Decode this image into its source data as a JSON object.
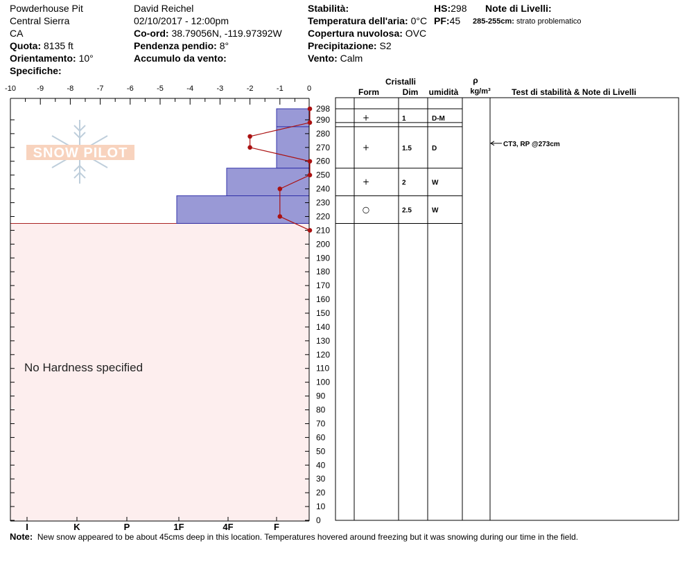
{
  "header": {
    "location": "Powderhouse Pit",
    "range": "Central Sierra",
    "state": "CA",
    "quota_label": "Quota:",
    "quota_value": "8135 ft",
    "aspect_label": "Orientamento:",
    "aspect_value": "10°",
    "specifics_label": "Specifiche:",
    "observer": "David Reichel",
    "datetime": "02/10/2017 - 12:00pm",
    "coord_label": "Co-ord:",
    "coord_value": "38.79056N, -119.97392W",
    "slope_label": "Pendenza pendio:",
    "slope_value": "8°",
    "wind_load_label": "Accumulo da vento:",
    "stability_label": "Stabilità:",
    "air_temp_label": "Temperatura dell'aria:",
    "air_temp_value": "0°C",
    "sky_label": "Copertura nuvolosa:",
    "sky_value": "OVC",
    "precip_label": "Precipitazione:",
    "precip_value": "S2",
    "wind_label": "Vento:",
    "wind_value": "Calm",
    "hs_label": "HS:",
    "hs_value": "298",
    "pf_label": "PF:",
    "pf_value": "45",
    "layer_notes_label": "Note di Livelli:",
    "layer_note_range": "285-255cm:",
    "layer_note_text": "strato problematico"
  },
  "logo_text": "SNOW PILOT",
  "no_hardness_text": "No Hardness specified",
  "note_label": "Note:",
  "note_text": "New snow appeared to be about 45cms deep in this location. Temperatures hovered around freezing but it was snowing during our time in the field.",
  "table_headers": {
    "crystals": "Cristalli",
    "form": "Form",
    "dim": "Dim",
    "moisture": "umidità",
    "rho": "ρ",
    "density_unit": "kg/m³",
    "stability_notes": "Test di stabilità & Note di Livelli"
  },
  "stability_annotation": "CT3, RP @273cm",
  "colors": {
    "layer_fill": "#9999d6",
    "layer_stroke": "#3333aa",
    "temp_line": "#aa1111",
    "no_hardness_fill": "#fdeeee",
    "axis": "#000000"
  },
  "chart_data": {
    "type": "snow-profile",
    "temperature_axis": {
      "ticks": [
        -10,
        -9,
        -8,
        -7,
        -6,
        -5,
        -4,
        -3,
        -2,
        -1,
        0
      ],
      "tick_labels": [
        "-10",
        "-9",
        "-8",
        "-7",
        "-6",
        "-5",
        "-4",
        "-3",
        "-2",
        "-1",
        "0"
      ],
      "range": [
        -10,
        0
      ]
    },
    "height_axis": {
      "range": [
        0,
        298
      ],
      "ticks": [
        0,
        10,
        20,
        30,
        40,
        50,
        60,
        70,
        80,
        90,
        100,
        110,
        120,
        130,
        140,
        150,
        160,
        170,
        180,
        190,
        200,
        210,
        220,
        230,
        240,
        250,
        260,
        270,
        280,
        290
      ],
      "top_label": "298"
    },
    "hardness_axis": {
      "labels": [
        "I",
        "K",
        "P",
        "1F",
        "4F",
        "F"
      ]
    },
    "temperature_profile": [
      {
        "height": 298,
        "temp": 0
      },
      {
        "height": 288,
        "temp": 0
      },
      {
        "height": 278,
        "temp": -2
      },
      {
        "height": 270,
        "temp": -2
      },
      {
        "height": 260,
        "temp": 0
      },
      {
        "height": 250,
        "temp": 0
      },
      {
        "height": 240,
        "temp": -1
      },
      {
        "height": 220,
        "temp": -1
      },
      {
        "height": 210,
        "temp": 0
      }
    ],
    "layers": [
      {
        "top": 298,
        "bottom": 285,
        "hardness": "F",
        "form": "+",
        "size": "1",
        "moisture": "D-M"
      },
      {
        "top": 285,
        "bottom": 255,
        "hardness": "F",
        "form": "+",
        "size": "1.5",
        "moisture": "D"
      },
      {
        "top": 255,
        "bottom": 235,
        "hardness": "4F",
        "form": "+",
        "size": "2",
        "moisture": "W"
      },
      {
        "top": 235,
        "bottom": 215,
        "hardness": "1F",
        "form": "○",
        "size": "2.5",
        "moisture": "W"
      }
    ],
    "layer_lines_extra": [
      288
    ],
    "no_hardness_below": 215,
    "stability_tests": [
      {
        "text": "CT3, RP @273cm",
        "height": 273
      }
    ]
  }
}
